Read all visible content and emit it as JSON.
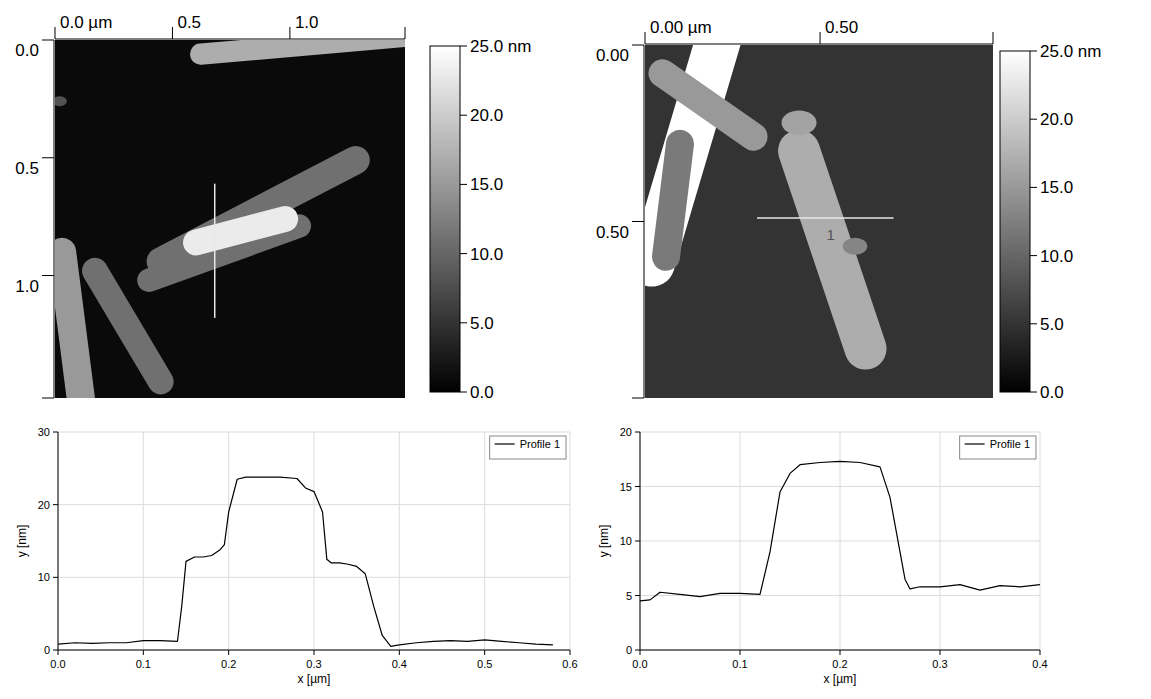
{
  "chart_data": [
    {
      "type": "afm_image",
      "xlim": [
        0,
        1.49
      ],
      "xticks": [
        {
          "value": 0,
          "label": "0.0 µm"
        },
        0.5,
        {
          "value": 1,
          "label": "1.0"
        }
      ],
      "ylim": [
        0,
        1.52
      ],
      "yticks": [
        {
          "value": 0,
          "label": "0.0"
        },
        0.5,
        {
          "value": 1,
          "label": "1.0"
        }
      ],
      "colorbar": {
        "range": [
          0,
          25
        ],
        "ticks": [
          {
            "value": 25,
            "label": "25.0 nm"
          },
          {
            "value": 20,
            "label": "20.0"
          },
          {
            "value": 15,
            "label": "15.0"
          },
          {
            "value": 10,
            "label": "10.0"
          },
          {
            "value": 5,
            "label": "5.0"
          },
          {
            "value": 0,
            "label": "0.0"
          }
        ]
      },
      "profile_line": {
        "x": [
          0.68,
          0.68
        ],
        "y": [
          0.61,
          1.18
        ]
      }
    },
    {
      "type": "afm_image",
      "xlim": [
        0,
        0.994
      ],
      "xticks": [
        {
          "value": 0,
          "label": "0.00 µm"
        },
        {
          "value": 0.5,
          "label": "0.50"
        }
      ],
      "ylim": [
        0,
        1.0
      ],
      "yticks": [
        {
          "value": 0,
          "label": "0.00"
        },
        {
          "value": 0.5,
          "label": "0.50"
        }
      ],
      "colorbar": {
        "range": [
          0,
          25
        ],
        "ticks": [
          {
            "value": 25,
            "label": "25.0 nm"
          },
          {
            "value": 20,
            "label": "20.0"
          },
          {
            "value": 15,
            "label": "15.0"
          },
          {
            "value": 10,
            "label": "10.0"
          },
          {
            "value": 5,
            "label": "5.0"
          },
          {
            "value": 0,
            "label": "0.0"
          }
        ]
      },
      "profile_line": {
        "x": [
          0.32,
          0.71
        ],
        "y": [
          0.49,
          0.49
        ]
      },
      "annotations": [
        {
          "text": "1",
          "x": 0.53,
          "y": 0.535
        }
      ]
    },
    {
      "type": "line",
      "x_label": "x [µm]",
      "y_label": "y [nm]",
      "grid": true,
      "legend": "upper right",
      "xlim": [
        0,
        0.6
      ],
      "xticks": [
        {
          "value": 0,
          "label": "0.0"
        },
        0.1,
        0.2,
        0.3,
        0.4,
        0.5,
        0.6
      ],
      "ylim": [
        0,
        30
      ],
      "yticks": [
        0,
        10,
        20,
        30
      ],
      "x": [
        0,
        0.02,
        0.04,
        0.06,
        0.08,
        0.1,
        0.12,
        0.14,
        0.145,
        0.15,
        0.16,
        0.17,
        0.18,
        0.19,
        0.195,
        0.2,
        0.21,
        0.22,
        0.24,
        0.26,
        0.28,
        0.29,
        0.3,
        0.31,
        0.315,
        0.32,
        0.33,
        0.34,
        0.35,
        0.36,
        0.37,
        0.38,
        0.39,
        0.4,
        0.42,
        0.44,
        0.46,
        0.48,
        0.5,
        0.52,
        0.54,
        0.56,
        0.58
      ],
      "series": [
        {
          "name": "Profile 1",
          "color": "#000000",
          "values": [
            0.8,
            1.0,
            0.9,
            1.0,
            1.0,
            1.3,
            1.3,
            1.2,
            6,
            12.2,
            12.8,
            12.8,
            13.0,
            13.8,
            14.5,
            19,
            23.5,
            23.8,
            23.8,
            23.8,
            23.6,
            22.3,
            21.8,
            19,
            12.5,
            12.0,
            12.0,
            11.8,
            11.5,
            10.5,
            6,
            2,
            0.5,
            0.7,
            1.0,
            1.2,
            1.3,
            1.2,
            1.4,
            1.2,
            1.0,
            0.8,
            0.7
          ]
        }
      ]
    },
    {
      "type": "line",
      "x_label": "x [µm]",
      "y_label": "y [nm]",
      "grid": true,
      "legend": "upper right",
      "xlim": [
        0,
        0.4
      ],
      "xticks": [
        {
          "value": 0,
          "label": "0.0"
        },
        0.1,
        0.2,
        0.3,
        0.4
      ],
      "ylim": [
        0,
        20
      ],
      "yticks": [
        0,
        5,
        10,
        15,
        20
      ],
      "x": [
        0,
        0.01,
        0.02,
        0.04,
        0.06,
        0.08,
        0.1,
        0.12,
        0.13,
        0.14,
        0.15,
        0.16,
        0.18,
        0.2,
        0.22,
        0.24,
        0.25,
        0.26,
        0.265,
        0.27,
        0.28,
        0.3,
        0.32,
        0.34,
        0.36,
        0.38,
        0.4
      ],
      "series": [
        {
          "name": "Profile 1",
          "color": "#000000",
          "values": [
            4.5,
            4.6,
            5.3,
            5.1,
            4.9,
            5.2,
            5.2,
            5.1,
            9,
            14.5,
            16.2,
            17.0,
            17.2,
            17.3,
            17.2,
            16.8,
            14,
            9,
            6.5,
            5.6,
            5.8,
            5.8,
            6.0,
            5.5,
            5.9,
            5.8,
            6.0
          ]
        }
      ]
    }
  ]
}
